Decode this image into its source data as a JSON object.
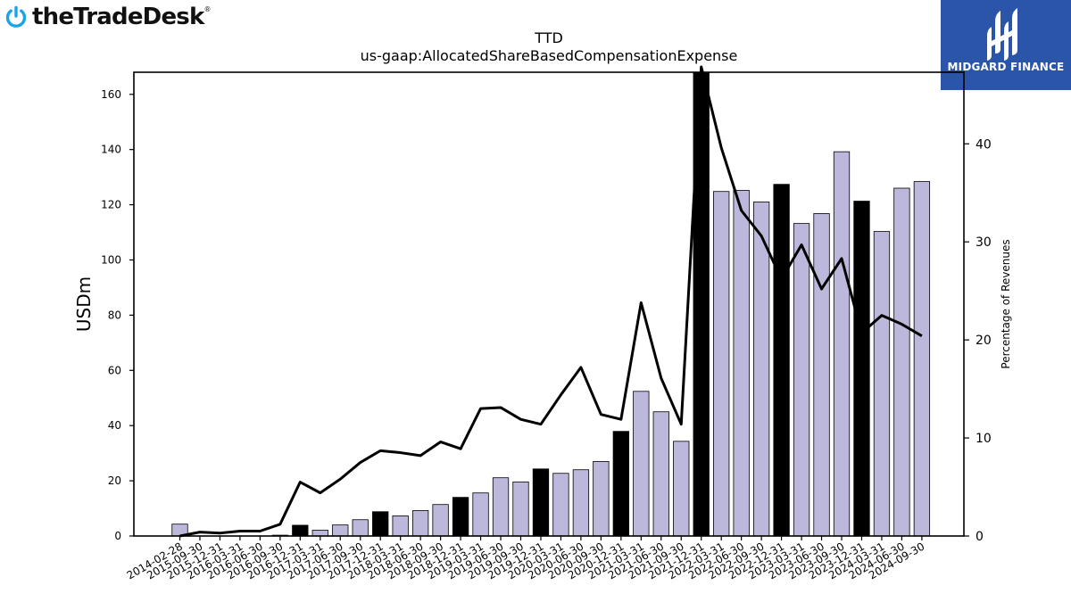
{
  "header": {
    "logo_text": "theTradeDesk",
    "logo_reg": "®",
    "badge_text": "MIDGARD FINANCE"
  },
  "chart_data": {
    "type": "bar",
    "title": "TTD",
    "subtitle": "us-gaap:AllocatedShareBasedCompensationExpense",
    "ylabel": "USDm",
    "y2label": "Percentage of Revenues",
    "ylim": [
      0,
      168
    ],
    "y2lim": [
      0,
      47.3
    ],
    "yticks": [
      0,
      20,
      40,
      60,
      80,
      100,
      120,
      140,
      160
    ],
    "y2ticks": [
      0,
      10,
      20,
      30,
      40
    ],
    "grid": false,
    "categories": [
      "2014-02-28",
      "2015-09-30",
      "2015-12-31",
      "2016-03-31",
      "2016-06-30",
      "2016-09-30",
      "2016-12-31",
      "2017-03-31",
      "2017-06-30",
      "2017-09-30",
      "2017-12-31",
      "2018-03-31",
      "2018-06-30",
      "2018-09-30",
      "2018-12-31",
      "2019-03-31",
      "2019-06-30",
      "2019-09-30",
      "2019-12-31",
      "2020-03-31",
      "2020-06-30",
      "2020-09-30",
      "2020-12-31",
      "2021-03-31",
      "2021-06-30",
      "2021-09-30",
      "2021-12-31",
      "2022-03-31",
      "2022-06-30",
      "2022-09-30",
      "2022-12-31",
      "2023-03-31",
      "2023-06-30",
      "2023-09-30",
      "2023-12-31",
      "2024-03-31",
      "2024-06-30",
      "2024-09-30"
    ],
    "series": [
      {
        "type": "bar",
        "values": [
          4.3,
          0,
          0,
          0,
          0,
          0.3,
          3.9,
          2.1,
          4.0,
          5.9,
          8.8,
          7.3,
          9.2,
          11.4,
          14.0,
          15.6,
          21.1,
          19.6,
          24.3,
          22.7,
          24.0,
          27.0,
          37.9,
          52.4,
          45.0,
          34.3,
          168,
          124.8,
          125.2,
          121.0,
          127.4,
          113.2,
          116.8,
          139.2,
          121.3,
          110.3,
          126.0,
          128.4
        ],
        "colors": [
          "#bcb8dc",
          "#bcb8dc",
          "#bcb8dc",
          "#bcb8dc",
          "#bcb8dc",
          "#bcb8dc",
          "#000000",
          "#bcb8dc",
          "#bcb8dc",
          "#bcb8dc",
          "#000000",
          "#bcb8dc",
          "#bcb8dc",
          "#bcb8dc",
          "#000000",
          "#bcb8dc",
          "#bcb8dc",
          "#bcb8dc",
          "#000000",
          "#bcb8dc",
          "#bcb8dc",
          "#bcb8dc",
          "#000000",
          "#bcb8dc",
          "#bcb8dc",
          "#bcb8dc",
          "#000000",
          "#bcb8dc",
          "#bcb8dc",
          "#bcb8dc",
          "#000000",
          "#bcb8dc",
          "#bcb8dc",
          "#bcb8dc",
          "#000000",
          "#bcb8dc",
          "#bcb8dc",
          "#bcb8dc"
        ]
      },
      {
        "type": "line",
        "axis": "right",
        "values": [
          0,
          0.4,
          0.3,
          0.5,
          0.5,
          1.2,
          5.5,
          4.4,
          5.8,
          7.5,
          8.7,
          8.5,
          8.2,
          9.6,
          8.9,
          13.0,
          13.1,
          11.9,
          11.4,
          14.4,
          17.2,
          12.4,
          11.9,
          23.8,
          16.1,
          11.4,
          48,
          39.6,
          33.2,
          30.6,
          26.2,
          29.7,
          25.2,
          28.3,
          20.7,
          22.5,
          21.6,
          20.4
        ],
        "color": "#000000"
      }
    ]
  }
}
